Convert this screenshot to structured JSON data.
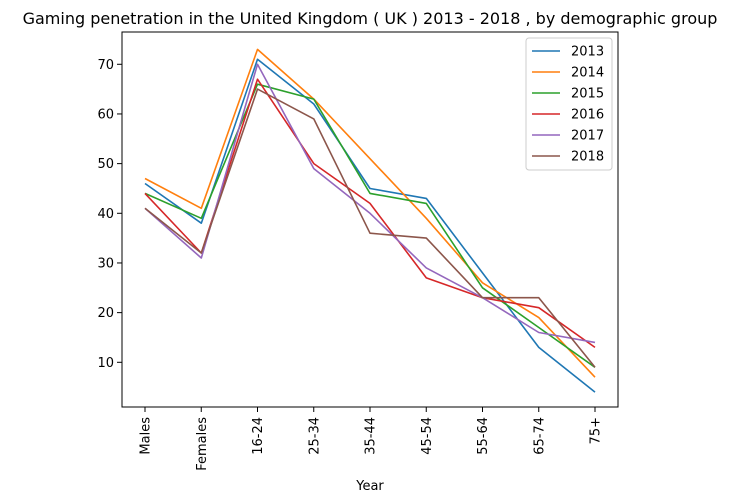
{
  "chart_data": {
    "type": "line",
    "title": "Gaming penetration in the United Kingdom ( UK ) 2013 - 2018 , by demographic group",
    "xlabel": "Year",
    "ylabel": "",
    "categories": [
      "Males",
      "Females",
      "16-24",
      "25-34",
      "35-44",
      "45-54",
      "55-64",
      "65-74",
      "75+"
    ],
    "ylim": [
      1,
      76.5
    ],
    "yticks": [
      10,
      20,
      30,
      40,
      50,
      60,
      70
    ],
    "grid": false,
    "legend_position": "top-right",
    "series": [
      {
        "name": "2013",
        "color": "#1f77b4",
        "values": [
          46,
          38,
          71,
          62,
          45,
          43,
          28,
          13,
          4
        ]
      },
      {
        "name": "2014",
        "color": "#ff7f0e",
        "values": [
          47,
          41,
          73,
          63,
          51,
          39,
          26,
          19,
          7
        ]
      },
      {
        "name": "2015",
        "color": "#2ca02c",
        "values": [
          44,
          39,
          66,
          63,
          44,
          42,
          25,
          17,
          9
        ]
      },
      {
        "name": "2016",
        "color": "#d62728",
        "values": [
          44,
          32,
          67,
          50,
          42,
          27,
          23,
          21,
          13
        ]
      },
      {
        "name": "2017",
        "color": "#9467bd",
        "values": [
          41,
          31,
          70,
          49,
          40,
          29,
          23,
          16,
          14
        ]
      },
      {
        "name": "2018",
        "color": "#8c564b",
        "values": [
          41,
          32,
          65,
          59,
          36,
          35,
          23,
          23,
          9
        ]
      }
    ]
  }
}
